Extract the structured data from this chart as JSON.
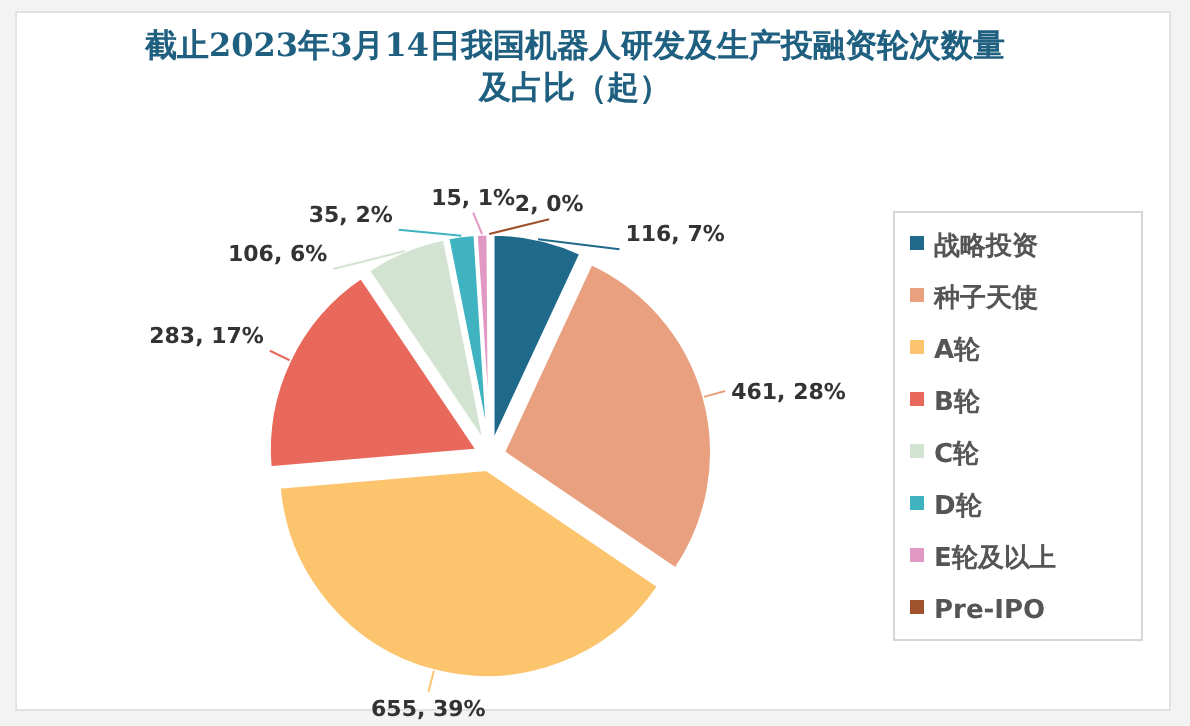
{
  "chart_data": {
    "type": "pie",
    "title": "截止2023年3月14日我国机器人研发及生产投融资轮次数量及占比（起）",
    "categories": [
      "战略投资",
      "种子天使",
      "A轮",
      "B轮",
      "C轮",
      "D轮",
      "E轮及以上",
      "Pre-IPO"
    ],
    "values": [
      116,
      461,
      655,
      283,
      106,
      35,
      15,
      2
    ],
    "value_labels": [
      "116, 7%",
      "461, 28%",
      "655, 39%",
      "283, 17%",
      "106, 6%",
      "35, 2%",
      "15, 1%",
      "2, 0%"
    ],
    "colors": [
      "#1f6a8a",
      "#e8a07f",
      "#fdc46e",
      "#e8695c",
      "#d3e3d1",
      "#3fb3c0",
      "#e298c4",
      "#a0522d"
    ],
    "legend": "right"
  }
}
